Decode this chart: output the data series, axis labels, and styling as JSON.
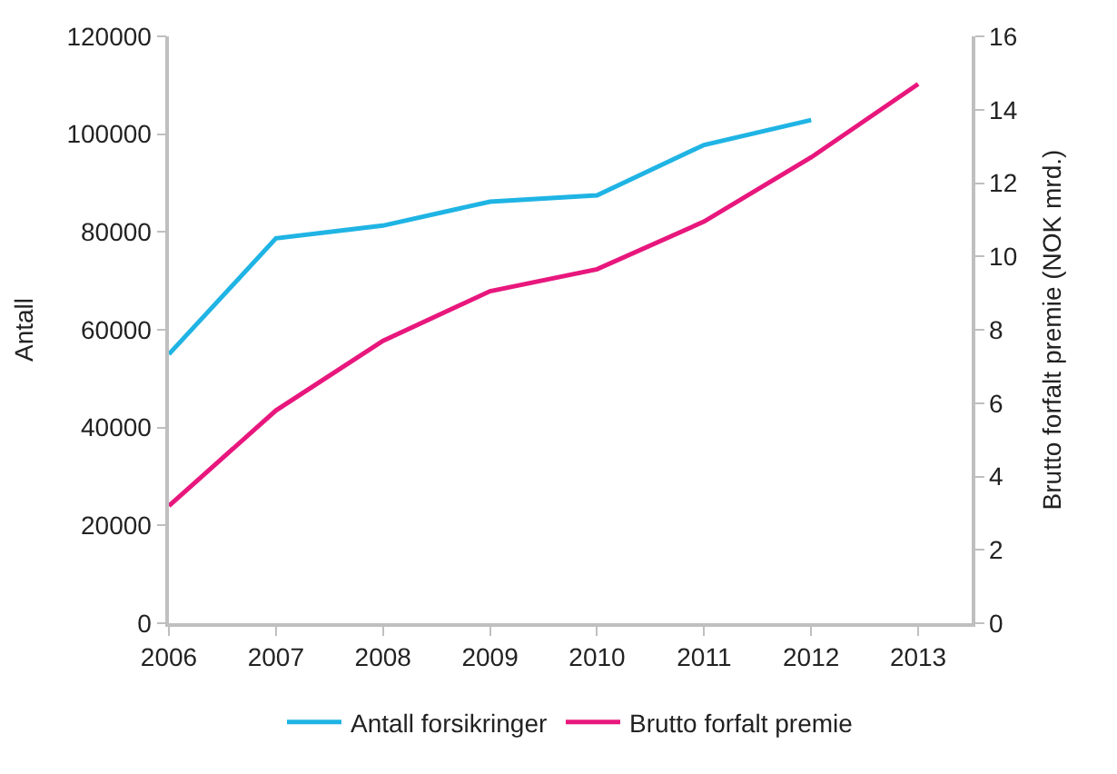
{
  "chart_data": {
    "type": "line",
    "ylabel": "Antall",
    "y2label": "Brutto forfalt premie (NOK mrd.)",
    "x": [
      2006,
      2007,
      2008,
      2009,
      2010,
      2011,
      2012,
      2013
    ],
    "xlim": [
      2006,
      2013.5
    ],
    "xticks": [
      2006,
      2007,
      2008,
      2009,
      2010,
      2011,
      2012,
      2013
    ],
    "ylim": [
      0,
      120000
    ],
    "yticks": [
      0,
      20000,
      40000,
      60000,
      80000,
      100000,
      120000
    ],
    "y2lim": [
      0,
      16
    ],
    "y2ticks": [
      0,
      2,
      4,
      6,
      8,
      10,
      12,
      14,
      16
    ],
    "series": [
      {
        "name": "Antall forsikringer",
        "color": "#1fb4e4",
        "values": [
          55000,
          78700,
          81300,
          86200,
          87500,
          97800,
          102900,
          null
        ]
      },
      {
        "name": "Brutto forfalt premie",
        "color": "#e8177d",
        "axis": "y2",
        "values": [
          3.2,
          5.8,
          7.7,
          9.05,
          9.65,
          10.95,
          12.7,
          14.7
        ]
      }
    ],
    "legend": "bottom",
    "marker": "none",
    "line_style": "solid"
  }
}
